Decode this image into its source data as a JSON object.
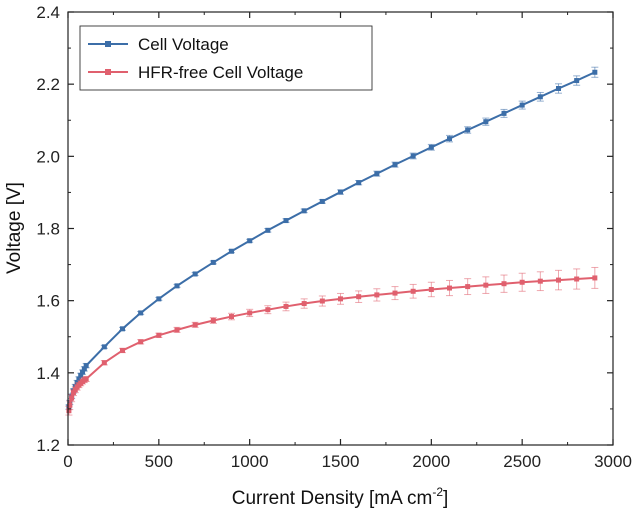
{
  "chart_data": {
    "type": "line",
    "xlabel_main": "Current Density [mA cm",
    "xlabel_sup": "-2",
    "xlabel_end": "]",
    "ylabel": "Voltage [V]",
    "xlim": [
      0,
      3000
    ],
    "ylim": [
      1.2,
      2.4
    ],
    "xticks": [
      "0",
      "500",
      "1000",
      "1500",
      "2000",
      "2500",
      "3000"
    ],
    "yticks": [
      "1.2",
      "1.4",
      "1.6",
      "1.8",
      "2.0",
      "2.2",
      "2.4"
    ],
    "legend_position": "top-left",
    "grid": false,
    "series": [
      {
        "name": "Cell Voltage",
        "color": "#3c6ea8",
        "marker": "square",
        "points": [
          [
            5,
            1.305
          ],
          [
            10,
            1.318
          ],
          [
            20,
            1.335
          ],
          [
            30,
            1.35
          ],
          [
            40,
            1.362
          ],
          [
            50,
            1.373
          ],
          [
            60,
            1.383
          ],
          [
            70,
            1.393
          ],
          [
            80,
            1.402
          ],
          [
            90,
            1.411
          ],
          [
            100,
            1.42
          ],
          [
            200,
            1.472
          ],
          [
            300,
            1.522
          ],
          [
            400,
            1.566
          ],
          [
            500,
            1.605
          ],
          [
            600,
            1.641
          ],
          [
            700,
            1.674
          ],
          [
            800,
            1.706
          ],
          [
            900,
            1.737
          ],
          [
            1000,
            1.766
          ],
          [
            1100,
            1.795
          ],
          [
            1200,
            1.822
          ],
          [
            1300,
            1.849
          ],
          [
            1400,
            1.875
          ],
          [
            1500,
            1.901
          ],
          [
            1600,
            1.927
          ],
          [
            1700,
            1.952
          ],
          [
            1800,
            1.977
          ],
          [
            1900,
            2.001
          ],
          [
            2000,
            2.025
          ],
          [
            2100,
            2.049
          ],
          [
            2200,
            2.073
          ],
          [
            2300,
            2.096
          ],
          [
            2400,
            2.119
          ],
          [
            2500,
            2.142
          ],
          [
            2600,
            2.165
          ],
          [
            2700,
            2.188
          ],
          [
            2800,
            2.21
          ],
          [
            2900,
            2.233
          ]
        ],
        "errors": [
          0.006,
          0.006,
          0.006,
          0.006,
          0.006,
          0.006,
          0.006,
          0.006,
          0.006,
          0.006,
          0.006,
          0.004,
          0.004,
          0.004,
          0.004,
          0.004,
          0.004,
          0.004,
          0.004,
          0.004,
          0.005,
          0.005,
          0.005,
          0.005,
          0.006,
          0.006,
          0.007,
          0.007,
          0.008,
          0.008,
          0.009,
          0.009,
          0.01,
          0.011,
          0.011,
          0.012,
          0.013,
          0.013,
          0.014
        ]
      },
      {
        "name": "HFR-free Cell Voltage",
        "color": "#e0606e",
        "marker": "square",
        "points": [
          [
            5,
            1.295
          ],
          [
            10,
            1.31
          ],
          [
            20,
            1.33
          ],
          [
            30,
            1.345
          ],
          [
            40,
            1.353
          ],
          [
            50,
            1.36
          ],
          [
            60,
            1.366
          ],
          [
            70,
            1.371
          ],
          [
            80,
            1.376
          ],
          [
            90,
            1.38
          ],
          [
            100,
            1.383
          ],
          [
            200,
            1.428
          ],
          [
            300,
            1.462
          ],
          [
            400,
            1.486
          ],
          [
            500,
            1.504
          ],
          [
            600,
            1.519
          ],
          [
            700,
            1.533
          ],
          [
            800,
            1.545
          ],
          [
            900,
            1.556
          ],
          [
            1000,
            1.566
          ],
          [
            1100,
            1.575
          ],
          [
            1200,
            1.584
          ],
          [
            1300,
            1.592
          ],
          [
            1400,
            1.599
          ],
          [
            1500,
            1.605
          ],
          [
            1600,
            1.611
          ],
          [
            1700,
            1.616
          ],
          [
            1800,
            1.621
          ],
          [
            1900,
            1.626
          ],
          [
            2000,
            1.631
          ],
          [
            2100,
            1.635
          ],
          [
            2200,
            1.639
          ],
          [
            2300,
            1.643
          ],
          [
            2400,
            1.647
          ],
          [
            2500,
            1.651
          ],
          [
            2600,
            1.654
          ],
          [
            2700,
            1.657
          ],
          [
            2800,
            1.66
          ],
          [
            2900,
            1.663
          ]
        ],
        "errors": [
          0.012,
          0.012,
          0.01,
          0.008,
          0.008,
          0.008,
          0.007,
          0.007,
          0.007,
          0.007,
          0.007,
          0.006,
          0.006,
          0.006,
          0.006,
          0.007,
          0.007,
          0.008,
          0.009,
          0.01,
          0.011,
          0.012,
          0.013,
          0.014,
          0.015,
          0.016,
          0.017,
          0.018,
          0.019,
          0.02,
          0.021,
          0.022,
          0.023,
          0.024,
          0.025,
          0.026,
          0.027,
          0.028,
          0.029
        ]
      }
    ]
  }
}
